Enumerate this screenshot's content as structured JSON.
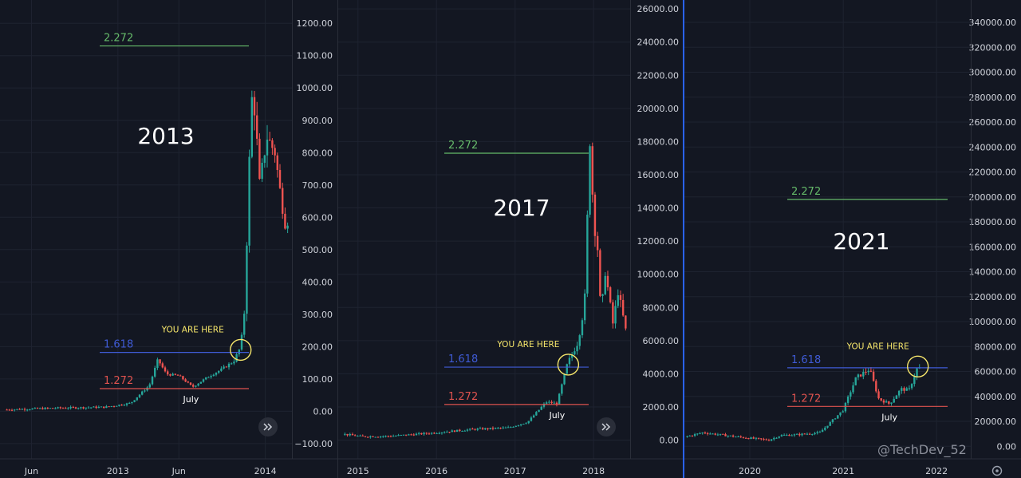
{
  "watermark": "@TechDev_52",
  "colors": {
    "bg": "#131722",
    "grid": "#1e2330",
    "up": "#26a69a",
    "down": "#ef5350",
    "fib_2272": "#66bb6a",
    "fib_1618": "#3f5bd6",
    "fib_1272": "#e0534f",
    "highlight": "#f7e76b",
    "divider": "#2962ff"
  },
  "chart_data": [
    {
      "type": "candlestick",
      "annotation": "2013",
      "y_ticks": [
        "1200.00",
        "1100.00",
        "1000.00",
        "900.00",
        "800.00",
        "700.00",
        "600.00",
        "500.00",
        "400.00",
        "300.00",
        "200.00",
        "100.00",
        "0.00",
        "−100.00"
      ],
      "x_ticks": [
        "Jun",
        "2013",
        "Jun",
        "2014"
      ],
      "ylim": [
        -120,
        1240
      ],
      "fib_levels": [
        {
          "label": "2.272",
          "value": 1130
        },
        {
          "label": "1.618",
          "value": 182
        },
        {
          "label": "1.272",
          "value": 70
        }
      ],
      "callout": {
        "text": "YOU ARE HERE",
        "x_date": "2013-11-01",
        "value": 190
      },
      "month_note": {
        "text": "July",
        "x_date": "2013-07-01"
      },
      "price_path": [
        [
          "2012-04-01",
          5
        ],
        [
          "2012-08-01",
          10
        ],
        [
          "2012-12-01",
          13
        ],
        [
          "2013-02-01",
          25
        ],
        [
          "2013-03-20",
          80
        ],
        [
          "2013-04-10",
          160
        ],
        [
          "2013-05-01",
          115
        ],
        [
          "2013-06-01",
          110
        ],
        [
          "2013-07-05",
          75
        ],
        [
          "2013-08-10",
          105
        ],
        [
          "2013-09-15",
          130
        ],
        [
          "2013-10-15",
          155
        ],
        [
          "2013-11-01",
          200
        ],
        [
          "2013-11-12",
          330
        ],
        [
          "2013-11-20",
          700
        ],
        [
          "2013-11-30",
          1000
        ],
        [
          "2013-12-08",
          900
        ],
        [
          "2013-12-18",
          700
        ],
        [
          "2014-01-05",
          850
        ],
        [
          "2014-01-25",
          800
        ],
        [
          "2014-02-10",
          650
        ],
        [
          "2014-02-22",
          560
        ],
        [
          "2014-03-01",
          620
        ]
      ]
    },
    {
      "type": "candlestick",
      "annotation": "2017",
      "y_ticks": [
        "26000.00",
        "24000.00",
        "22000.00",
        "20000.00",
        "18000.00",
        "16000.00",
        "14000.00",
        "12000.00",
        "10000.00",
        "8000.00",
        "6000.00",
        "4000.00",
        "2000.00",
        "0.00"
      ],
      "x_ticks": [
        "2015",
        "2016",
        "2017",
        "2018"
      ],
      "ylim": [
        -600,
        26200
      ],
      "fib_levels": [
        {
          "label": "2.272",
          "value": 17300
        },
        {
          "label": "1.618",
          "value": 4400
        },
        {
          "label": "1.272",
          "value": 2150
        }
      ],
      "callout": {
        "text": "YOU ARE HERE",
        "x_date": "2017-09-05",
        "value": 4550
      },
      "month_note": {
        "text": "July",
        "x_date": "2017-07-15"
      },
      "price_path": [
        [
          "2014-11-01",
          350
        ],
        [
          "2015-01-15",
          220
        ],
        [
          "2015-06-01",
          240
        ],
        [
          "2015-12-01",
          420
        ],
        [
          "2016-06-15",
          650
        ],
        [
          "2016-12-01",
          750
        ],
        [
          "2017-03-01",
          1100
        ],
        [
          "2017-05-25",
          2300
        ],
        [
          "2017-07-15",
          2200
        ],
        [
          "2017-09-01",
          4600
        ],
        [
          "2017-10-20",
          5900
        ],
        [
          "2017-11-20",
          8200
        ],
        [
          "2017-12-17",
          19000
        ],
        [
          "2017-12-30",
          13500
        ],
        [
          "2018-01-20",
          11500
        ],
        [
          "2018-02-06",
          7000
        ],
        [
          "2018-02-20",
          10500
        ],
        [
          "2018-03-10",
          9000
        ],
        [
          "2018-04-01",
          7000
        ],
        [
          "2018-04-25",
          9000
        ],
        [
          "2018-06-01",
          6500
        ]
      ]
    },
    {
      "type": "candlestick",
      "annotation": "2021",
      "y_ticks": [
        "340000.00",
        "320000.00",
        "300000.00",
        "280000.00",
        "260000.00",
        "240000.00",
        "220000.00",
        "200000.00",
        "180000.00",
        "160000.00",
        "140000.00",
        "120000.00",
        "100000.00",
        "80000.00",
        "60000.00",
        "40000.00",
        "20000.00",
        "0.00"
      ],
      "x_ticks": [
        "2020",
        "2021",
        "2022"
      ],
      "ylim": [
        -3000,
        356000
      ],
      "fib_levels": [
        {
          "label": "2.272",
          "value": 198000
        },
        {
          "label": "1.618",
          "value": 63000
        },
        {
          "label": "1.272",
          "value": 32000
        }
      ],
      "callout": {
        "text": "YOU ARE HERE",
        "x_date": "2021-10-20",
        "value": 64000
      },
      "month_note": {
        "text": "July",
        "x_date": "2021-07-01"
      },
      "price_path": [
        [
          "2019-05-01",
          8000
        ],
        [
          "2019-07-01",
          11000
        ],
        [
          "2019-12-01",
          7200
        ],
        [
          "2020-03-15",
          5000
        ],
        [
          "2020-05-01",
          8800
        ],
        [
          "2020-07-01",
          9300
        ],
        [
          "2020-10-01",
          11000
        ],
        [
          "2020-12-31",
          29000
        ],
        [
          "2021-02-20",
          55000
        ],
        [
          "2021-04-14",
          62000
        ],
        [
          "2021-05-20",
          38000
        ],
        [
          "2021-07-01",
          34000
        ],
        [
          "2021-08-15",
          46000
        ],
        [
          "2021-09-15",
          45000
        ],
        [
          "2021-10-20",
          64000
        ],
        [
          "2021-11-05",
          61000
        ]
      ]
    }
  ]
}
